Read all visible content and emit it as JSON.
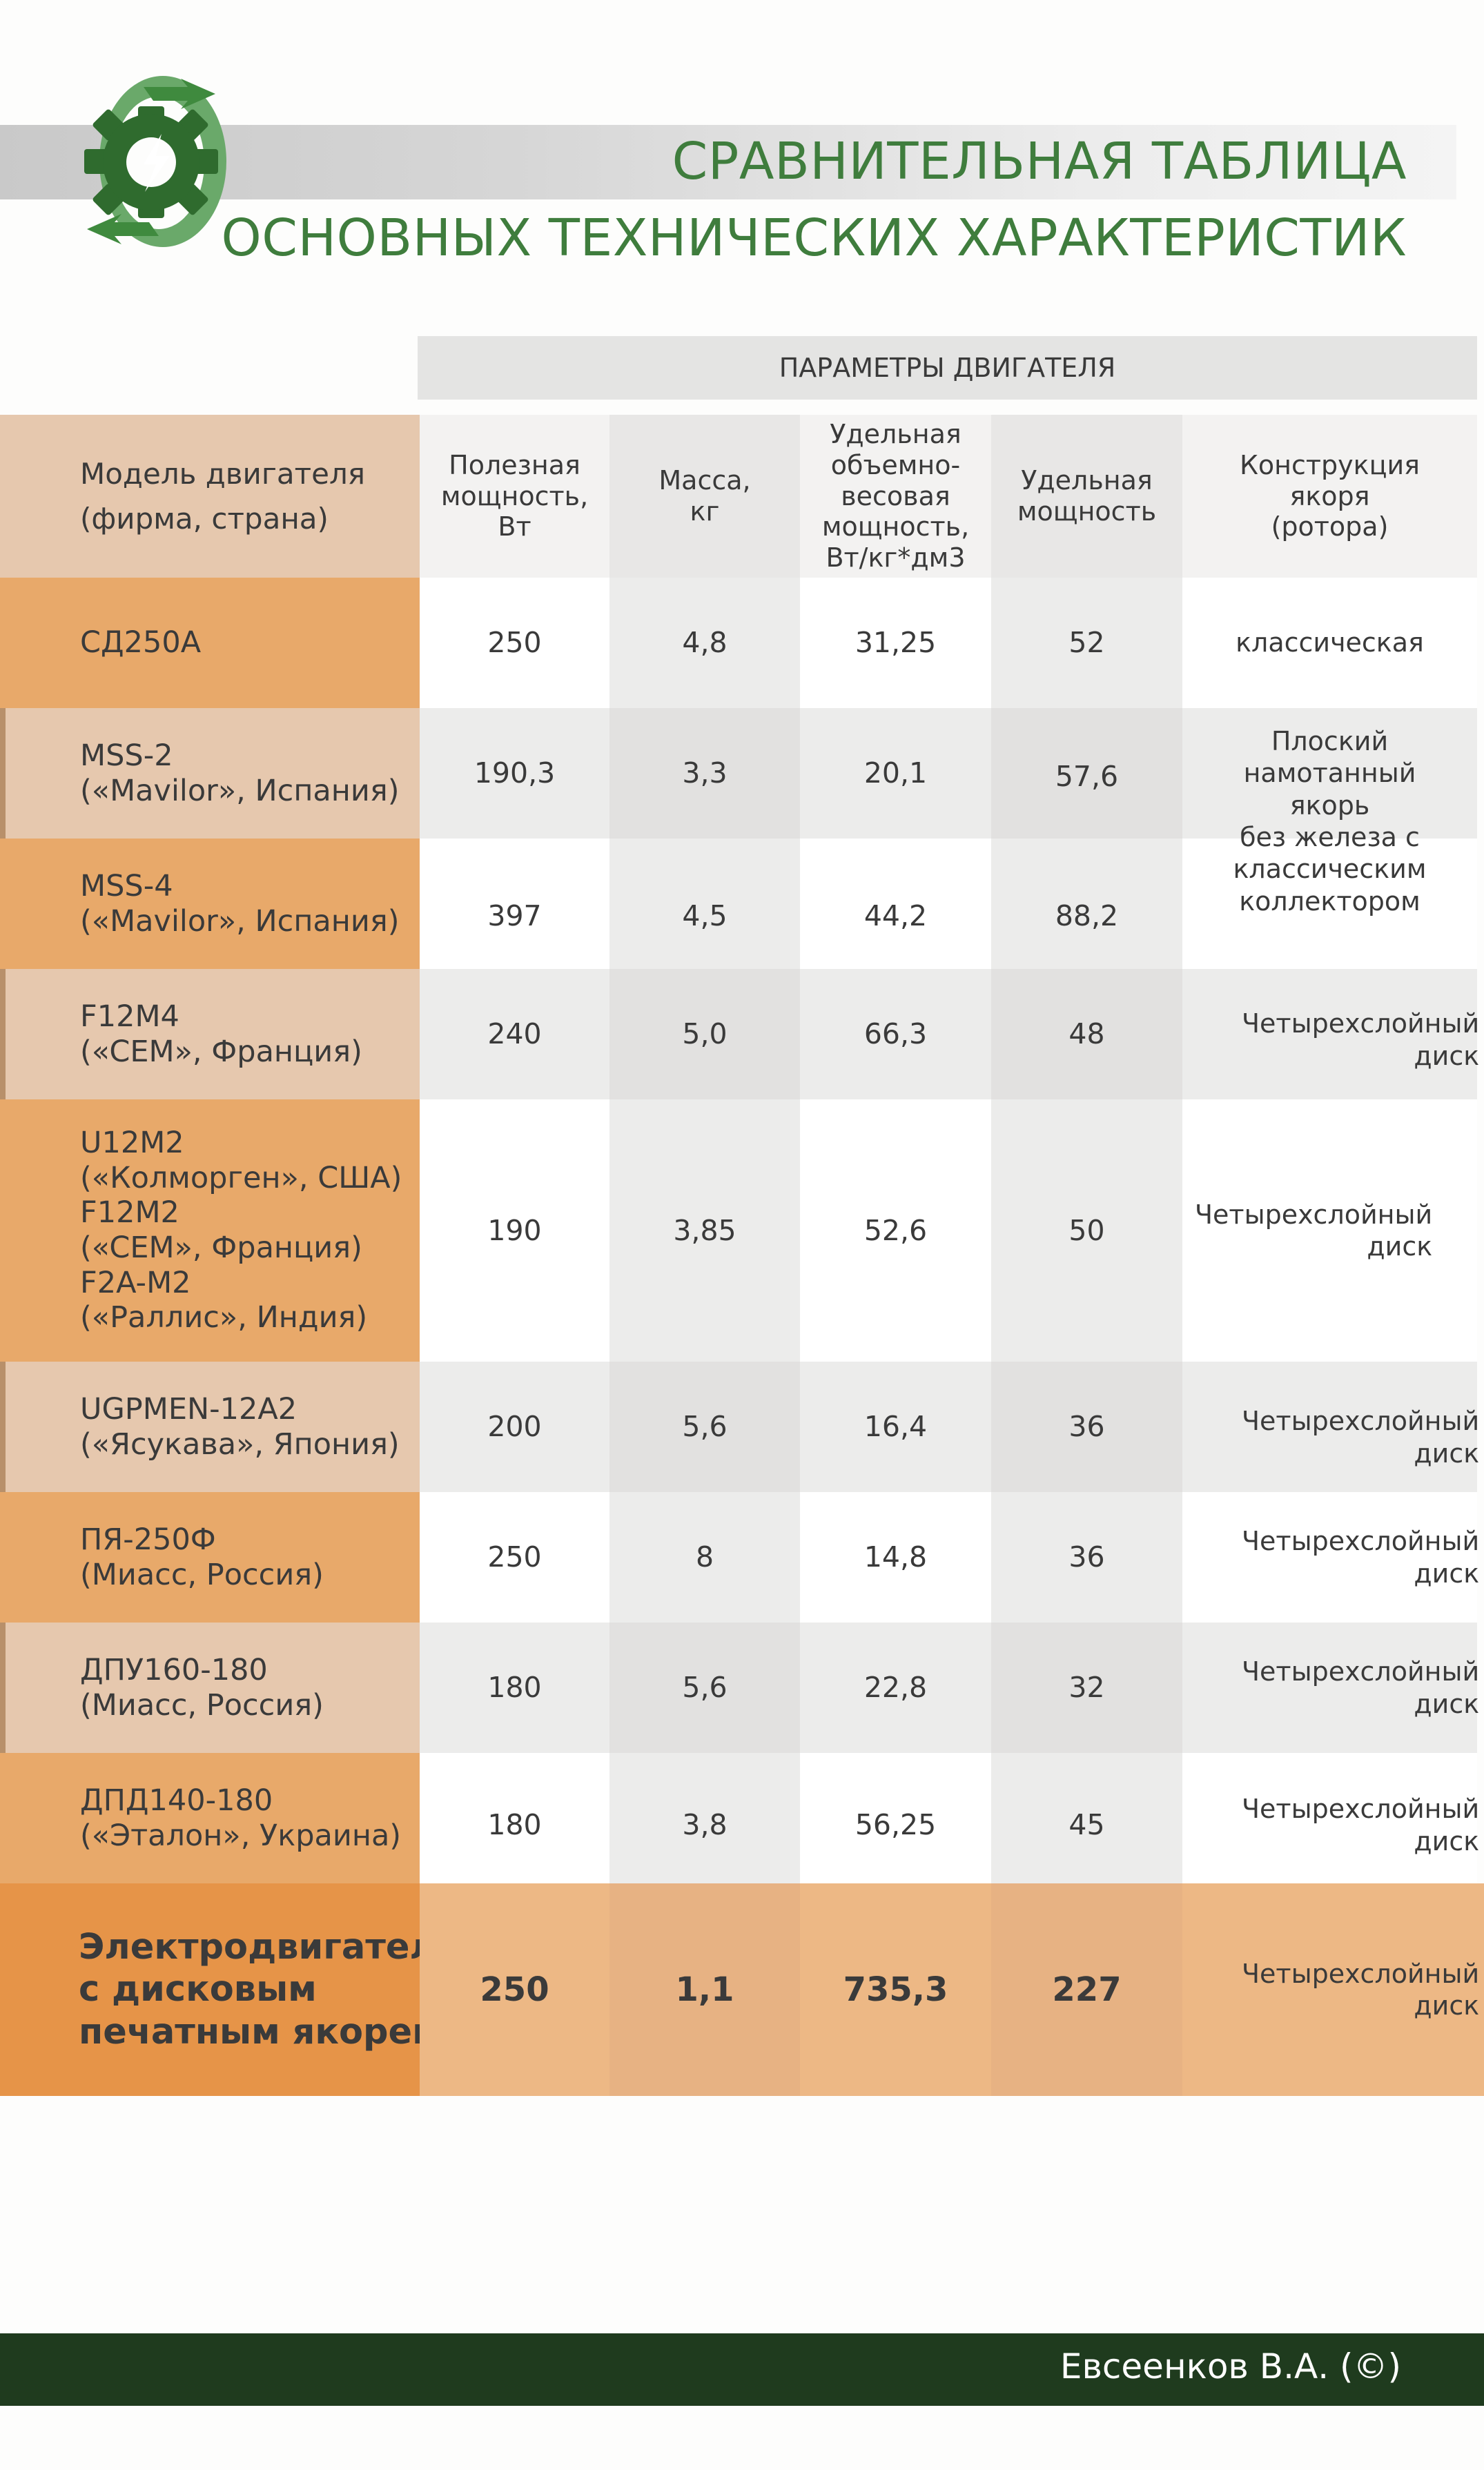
{
  "header": {
    "title_line1": "СРАВНИТЕЛЬНАЯ ТАБЛИЦА",
    "title_line2": "ОСНОВНЫХ ТЕХНИЧЕСКИХ ХАРАКТЕРИСТИК",
    "logo_icon": "gear-recycle-lightning-icon",
    "accent_color": "#3f7d3d"
  },
  "table": {
    "group_header": "ПАРАМЕТРЫ ДВИГАТЕЛЯ",
    "columns": [
      "Модель двигателя\n(фирма, страна)",
      "Полезная\nмощность,\nВт",
      "Масса,\nкг",
      "Удельная\nобъемно-\nвесовая\nмощность,\nВт/кг*дм3",
      "Удельная\nмощность",
      "Конструкция\nякоря\n(ротора)"
    ],
    "rows": [
      {
        "model": "СД250А",
        "power": "250",
        "mass": "4,8",
        "vol_power": "31,25",
        "spec_power": "52",
        "construction": "классическая"
      },
      {
        "model": "MSS-2\n(«Mavilor», Испания)",
        "power": "190,3",
        "mass": "3,3",
        "vol_power": "20,1",
        "spec_power": "57,6",
        "construction": ""
      },
      {
        "model": "MSS-4\n(«Mavilor», Испания)",
        "power": "397",
        "mass": "4,5",
        "vol_power": "44,2",
        "spec_power": "88,2",
        "construction": ""
      },
      {
        "model": "F12M4\n(«CEM», Франция)",
        "power": "240",
        "mass": "5,0",
        "vol_power": "66,3",
        "spec_power": "48",
        "construction": "Четырехслойный\nдиск"
      },
      {
        "model": "U12M2\n(«Колморген», США)\nF12M2\n(«CEM», Франция)\nF2A-M2\n(«Раллис», Индия)",
        "power": "190",
        "mass": "3,85",
        "vol_power": "52,6",
        "spec_power": "50",
        "construction": "Четырехслойный\nдиск"
      },
      {
        "model": "UGPMEN-12A2\n(«Ясукава», Япония)",
        "power": "200",
        "mass": "5,6",
        "vol_power": "16,4",
        "spec_power": "36",
        "construction": "Четырехслойный\nдиск"
      },
      {
        "model": "ПЯ-250Ф\n(Миасс,  Россия)",
        "power": "250",
        "mass": "8",
        "vol_power": "14,8",
        "spec_power": "36",
        "construction": "Четырехслойный\nдиск"
      },
      {
        "model": "ДПУ160-180\n(Миасс,  Россия)",
        "power": "180",
        "mass": "5,6",
        "vol_power": "22,8",
        "spec_power": "32",
        "construction": "Четырехслойный\nдиск"
      },
      {
        "model": "ДПД140-180\n(«Эталон», Украина)",
        "power": "180",
        "mass": "3,8",
        "vol_power": "56,25",
        "spec_power": "45",
        "construction": "Четырехслойный\nдиск"
      },
      {
        "model": "Электродвигатель\nс дисковым\nпечатным якорем",
        "power": "250",
        "mass": "1,1",
        "vol_power": "735,3",
        "spec_power": "227",
        "construction": "Четырехслойный\nдиск"
      }
    ],
    "merged_construction_mss": "Плоский\nнамотанный\nякорь\nбез железа с\nклассическим\nколлектором"
  },
  "footer": {
    "author": "Евсеенков В.А. (©)"
  }
}
